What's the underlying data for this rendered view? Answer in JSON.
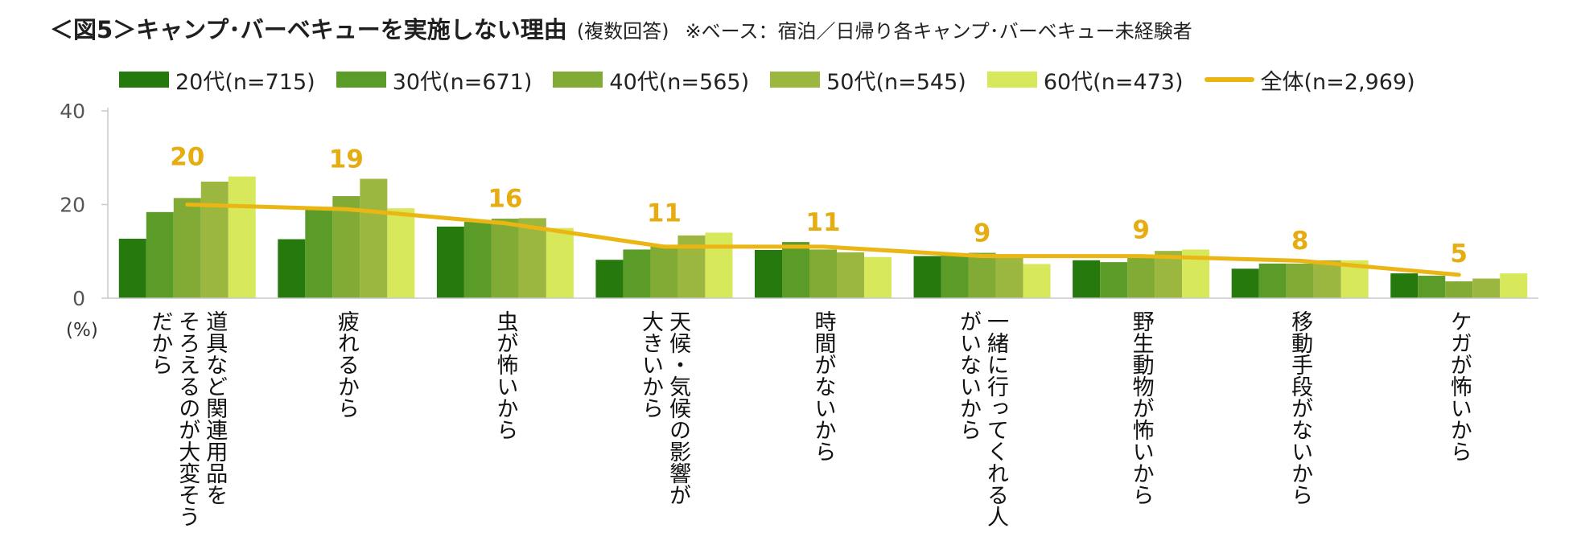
{
  "title": {
    "main": "＜図5＞キャンプ･バーベキューを実施しない理由",
    "sub": "(複数回答)",
    "note": "※ベース：宿泊／日帰り各キャンプ･バーベキュー未経験者"
  },
  "colors": {
    "series": [
      "#267a0d",
      "#5b9c28",
      "#82ab36",
      "#9cb73f",
      "#d8e85b"
    ],
    "total_line": "#ebb514",
    "total_label": "#e6ad12",
    "axis": "#c8c8c8",
    "tick_text": "#555555"
  },
  "legend": [
    {
      "label": "20代(n=715)"
    },
    {
      "label": "30代(n=671)"
    },
    {
      "label": "40代(n=565)"
    },
    {
      "label": "50代(n=545)"
    },
    {
      "label": "60代(n=473)"
    },
    {
      "label": "全体(n=2,969)"
    }
  ],
  "chart_data": {
    "type": "bar",
    "title": "＜図5＞キャンプ･バーベキューを実施しない理由",
    "ylabel": "(%)",
    "ylim": [
      0,
      40
    ],
    "yticks": [
      0,
      20,
      40
    ],
    "categories": [
      [
        "道具など関連用品を",
        "そろえるのが大変そう",
        "だから"
      ],
      [
        "疲れるから"
      ],
      [
        "虫が怖いから"
      ],
      [
        "天候・気候の影響が",
        "大きいから"
      ],
      [
        "時間がないから"
      ],
      [
        "一緒に行ってくれる人",
        "がいないから"
      ],
      [
        "野生動物が怖いから"
      ],
      [
        "移動手段がないから"
      ],
      [
        "ケガが怖いから"
      ]
    ],
    "series": [
      {
        "name": "20代(n=715)",
        "values": [
          12.7,
          12.6,
          15.3,
          8.2,
          10.3,
          9.0,
          8.1,
          6.3,
          5.3
        ]
      },
      {
        "name": "30代(n=671)",
        "values": [
          18.4,
          19.2,
          16.3,
          10.4,
          12.0,
          9.2,
          7.7,
          7.4,
          4.8
        ]
      },
      {
        "name": "40代(n=565)",
        "values": [
          21.4,
          21.8,
          17.0,
          11.4,
          10.4,
          9.7,
          8.8,
          7.4,
          3.6
        ]
      },
      {
        "name": "50代(n=545)",
        "values": [
          24.9,
          25.5,
          17.1,
          13.4,
          9.8,
          9.4,
          10.1,
          8.1,
          4.2
        ]
      },
      {
        "name": "60代(n=473)",
        "values": [
          26.0,
          19.2,
          15.0,
          14.0,
          8.8,
          7.3,
          10.4,
          8.1,
          5.3
        ]
      }
    ],
    "total": {
      "name": "全体(n=2,969)",
      "values": [
        20,
        19,
        16,
        11,
        11,
        9,
        9,
        8,
        5
      ],
      "labels": [
        "20",
        "19",
        "16",
        "11",
        "11",
        "9",
        "9",
        "8",
        "5"
      ]
    }
  }
}
